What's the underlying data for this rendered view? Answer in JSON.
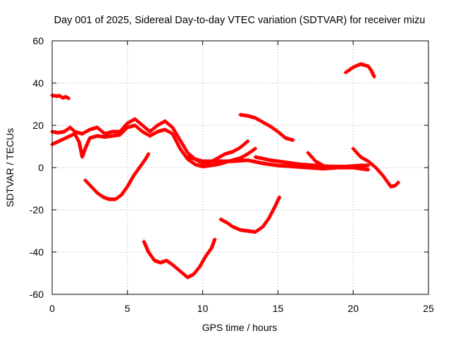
{
  "chart_data": {
    "type": "scatter",
    "title": "Day 001 of 2025, Sidereal Day-to-day VTEC variation (SDTVAR) for receiver mizu",
    "xlabel": "GPS time / hours",
    "ylabel": "SDTVAR / TECUs",
    "xlim": [
      0,
      25
    ],
    "ylim": [
      -60,
      60
    ],
    "xticks": [
      0,
      5,
      10,
      15,
      20,
      25
    ],
    "yticks": [
      -60,
      -40,
      -20,
      0,
      20,
      40,
      60
    ],
    "grid": true,
    "marker_color": "#ff0000",
    "series": [
      {
        "name": "track-top-left",
        "points": [
          [
            0,
            34.2
          ],
          [
            0.3,
            33.8
          ],
          [
            0.5,
            34
          ],
          [
            0.7,
            33
          ],
          [
            0.9,
            33.5
          ],
          [
            1.1,
            32.8
          ]
        ]
      },
      {
        "name": "track-cluster-low",
        "points": [
          [
            0,
            11
          ],
          [
            0.3,
            12
          ],
          [
            0.6,
            13
          ],
          [
            0.9,
            14
          ],
          [
            1.2,
            15
          ],
          [
            1.5,
            16
          ],
          [
            1.8,
            12
          ],
          [
            2.0,
            5
          ],
          [
            2.2,
            9
          ],
          [
            2.5,
            14
          ],
          [
            3,
            15
          ],
          [
            3.5,
            14.5
          ],
          [
            4,
            15
          ],
          [
            4.5,
            15.5
          ],
          [
            5,
            19
          ],
          [
            5.5,
            20
          ],
          [
            6,
            17
          ],
          [
            6.5,
            15
          ],
          [
            7,
            17
          ],
          [
            7.5,
            18
          ],
          [
            8,
            16
          ],
          [
            8.5,
            9
          ],
          [
            9,
            4
          ],
          [
            9.5,
            1.5
          ],
          [
            10,
            0.5
          ],
          [
            10.5,
            1
          ],
          [
            11,
            1.5
          ],
          [
            11.5,
            2.5
          ],
          [
            12,
            3.5
          ],
          [
            12.5,
            4.5
          ],
          [
            13,
            6.5
          ],
          [
            13.5,
            9
          ]
        ]
      },
      {
        "name": "track-cluster-high",
        "points": [
          [
            0,
            17
          ],
          [
            0.4,
            16.5
          ],
          [
            0.8,
            17
          ],
          [
            1.2,
            19
          ],
          [
            1.5,
            17
          ],
          [
            2,
            16
          ],
          [
            2.5,
            18
          ],
          [
            3,
            19
          ],
          [
            3.5,
            16
          ],
          [
            4,
            17
          ],
          [
            4.5,
            17
          ],
          [
            5,
            21
          ],
          [
            5.5,
            23
          ],
          [
            6,
            20
          ],
          [
            6.5,
            17
          ],
          [
            7,
            20
          ],
          [
            7.5,
            22
          ],
          [
            8,
            19
          ],
          [
            8.5,
            13
          ],
          [
            9,
            7
          ],
          [
            9.5,
            4
          ],
          [
            10,
            2
          ],
          [
            10.5,
            2.5
          ],
          [
            11,
            4.5
          ],
          [
            11.5,
            6.5
          ],
          [
            12,
            7.5
          ],
          [
            12.5,
            9.5
          ],
          [
            13,
            12.5
          ]
        ]
      },
      {
        "name": "track-broad-band",
        "points": [
          [
            9,
            5
          ],
          [
            10,
            3
          ],
          [
            11,
            3
          ],
          [
            12,
            3
          ],
          [
            13,
            3.5
          ],
          [
            14,
            2
          ],
          [
            15,
            1
          ],
          [
            16,
            0.5
          ],
          [
            17,
            0
          ],
          [
            18,
            -0.5
          ],
          [
            19,
            0
          ],
          [
            20,
            0
          ],
          [
            21,
            -1
          ]
        ]
      },
      {
        "name": "track-mid-descending",
        "points": [
          [
            13.5,
            5
          ],
          [
            14.5,
            3.5
          ],
          [
            15.5,
            2.5
          ],
          [
            16.5,
            1.5
          ],
          [
            17.5,
            1
          ],
          [
            18.5,
            0.5
          ],
          [
            19.5,
            0.5
          ],
          [
            20.5,
            1
          ],
          [
            21,
            1
          ]
        ]
      },
      {
        "name": "track-right-drop",
        "points": [
          [
            20,
            9
          ],
          [
            20.5,
            5
          ],
          [
            21,
            3
          ],
          [
            21.5,
            0
          ],
          [
            22,
            -4
          ],
          [
            22.5,
            -9
          ],
          [
            22.8,
            -8.5
          ],
          [
            23,
            -7
          ]
        ]
      },
      {
        "name": "track-peak-17",
        "points": [
          [
            17,
            7
          ],
          [
            17.5,
            3
          ],
          [
            18,
            1
          ]
        ]
      },
      {
        "name": "track-dip-15",
        "points": [
          [
            2.2,
            -6
          ],
          [
            2.6,
            -9
          ],
          [
            3,
            -12
          ],
          [
            3.4,
            -14
          ],
          [
            3.8,
            -15
          ],
          [
            4.2,
            -15
          ],
          [
            4.6,
            -13
          ],
          [
            5,
            -9
          ],
          [
            5.4,
            -4
          ],
          [
            5.8,
            0
          ],
          [
            6.2,
            4
          ],
          [
            6.4,
            6.5
          ]
        ]
      },
      {
        "name": "track-upper-mid",
        "points": [
          [
            12.5,
            25
          ],
          [
            13,
            24.5
          ],
          [
            13.5,
            23.5
          ],
          [
            14,
            21.5
          ],
          [
            14.5,
            19.5
          ],
          [
            15,
            17
          ],
          [
            15.5,
            14
          ],
          [
            16,
            13
          ]
        ]
      },
      {
        "name": "track-top-right",
        "points": [
          [
            19.5,
            45
          ],
          [
            20,
            47.5
          ],
          [
            20.5,
            49
          ],
          [
            21,
            48
          ],
          [
            21.2,
            46
          ],
          [
            21.4,
            43
          ]
        ]
      },
      {
        "name": "track-low-deep",
        "points": [
          [
            6.1,
            -35
          ],
          [
            6.4,
            -40
          ],
          [
            6.8,
            -44
          ],
          [
            7.2,
            -45
          ],
          [
            7.6,
            -44
          ],
          [
            8,
            -46
          ],
          [
            8.5,
            -49
          ],
          [
            9,
            -52
          ],
          [
            9.4,
            -50.5
          ],
          [
            9.8,
            -47
          ],
          [
            10.2,
            -42
          ],
          [
            10.6,
            -38
          ],
          [
            10.8,
            -34
          ]
        ]
      },
      {
        "name": "track-low-mid",
        "points": [
          [
            11.2,
            -24.5
          ],
          [
            11.6,
            -26
          ],
          [
            12,
            -28
          ],
          [
            12.5,
            -29.5
          ],
          [
            13,
            -30
          ],
          [
            13.5,
            -30.5
          ],
          [
            14,
            -28
          ],
          [
            14.4,
            -24
          ],
          [
            14.8,
            -18.5
          ],
          [
            15.1,
            -14
          ]
        ]
      }
    ]
  }
}
